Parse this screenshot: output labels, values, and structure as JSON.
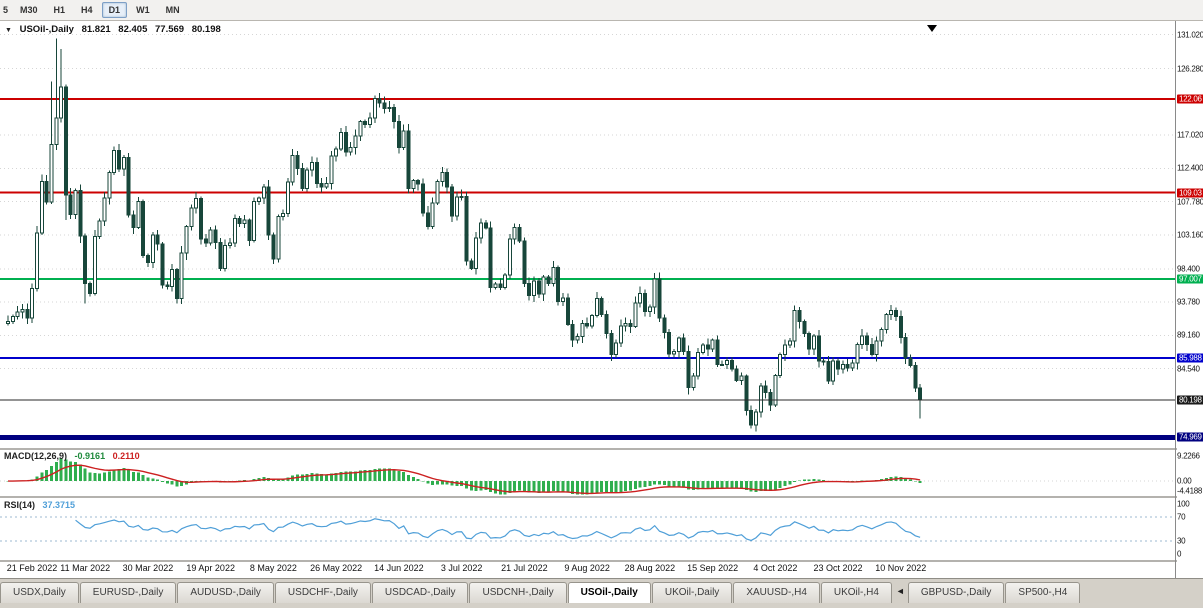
{
  "toolbar": {
    "partial_label": "5",
    "timeframes": [
      {
        "label": "M30",
        "active": false
      },
      {
        "label": "H1",
        "active": false
      },
      {
        "label": "H4",
        "active": false
      },
      {
        "label": "D1",
        "active": true
      },
      {
        "label": "W1",
        "active": false
      },
      {
        "label": "MN",
        "active": false
      }
    ]
  },
  "chart": {
    "symbol": "USOil-,Daily",
    "open": "81.821",
    "high": "82.405",
    "low": "77.569",
    "close": "80.198"
  },
  "chart_data": {
    "type": "candlestick",
    "title": "USOil-,Daily",
    "timeframe": "Daily",
    "price_axis": {
      "max": 132.9,
      "min": 73.5,
      "plain_labels": [
        {
          "v": 131.02,
          "t": "131.020"
        },
        {
          "v": 126.28,
          "t": "126.280"
        },
        {
          "v": 117.02,
          "t": "117.020"
        },
        {
          "v": 112.4,
          "t": "112.400"
        },
        {
          "v": 107.78,
          "t": "107.780"
        },
        {
          "v": 103.16,
          "t": "103.160"
        },
        {
          "v": 98.4,
          "t": "98.400"
        },
        {
          "v": 93.78,
          "t": "93.780"
        },
        {
          "v": 89.16,
          "t": "89.160"
        },
        {
          "v": 84.54,
          "t": "84.540"
        }
      ]
    },
    "h_lines": [
      {
        "price": 122.06,
        "label": "122.06",
        "color": "#cc0000",
        "width": 2
      },
      {
        "price": 109.03,
        "label": "109.03",
        "color": "#cc0000",
        "width": 2
      },
      {
        "price": 97.007,
        "label": "97.007",
        "color": "#00b050",
        "width": 2
      },
      {
        "price": 85.988,
        "label": "85.988",
        "color": "#0000cc",
        "width": 2
      },
      {
        "price": 74.969,
        "label": "74.969",
        "color": "#000080",
        "width": 5
      }
    ],
    "current_price": {
      "value": 80.198,
      "label": "80.198"
    },
    "first_open": 90.8,
    "closes": [
      91.1,
      91.8,
      92.4,
      92.8,
      91.6,
      95.7,
      103.4,
      110.6,
      107.7,
      115.7,
      119.4,
      123.7,
      108.7,
      106.0,
      109.3,
      103.0,
      96.4,
      95.0,
      102.9,
      105.1,
      108.3,
      111.8,
      114.9,
      112.3,
      113.9,
      105.9,
      104.2,
      107.8,
      100.3,
      99.3,
      103.1,
      101.9,
      96.2,
      96.0,
      98.3,
      94.3,
      100.6,
      104.3,
      106.9,
      108.2,
      102.6,
      102.0,
      103.8,
      102.1,
      98.5,
      101.7,
      102.0,
      105.4,
      104.7,
      105.2,
      102.4,
      107.8,
      108.3,
      109.8,
      103.1,
      99.8,
      105.7,
      106.1,
      110.5,
      114.2,
      112.4,
      109.6,
      112.2,
      113.2,
      110.3,
      109.8,
      110.3,
      114.1,
      115.1,
      117.4,
      114.7,
      115.3,
      116.9,
      118.9,
      118.5,
      119.4,
      122.1,
      121.5,
      120.7,
      120.9,
      118.9,
      115.3,
      117.6,
      109.6,
      110.7,
      110.2,
      106.2,
      104.3,
      107.6,
      110.6,
      111.8,
      109.8,
      105.8,
      108.4,
      108.5,
      99.5,
      98.5,
      102.7,
      104.8,
      104.1,
      95.8,
      96.3,
      95.8,
      97.6,
      102.6,
      104.2,
      102.3,
      96.4,
      94.7,
      96.7,
      94.9,
      97.3,
      96.4,
      98.6,
      93.9,
      94.4,
      90.7,
      88.5,
      89.0,
      90.8,
      90.5,
      91.9,
      94.3,
      92.1,
      89.4,
      86.5,
      88.1,
      90.5,
      90.8,
      90.4,
      93.7,
      95.0,
      92.5,
      93.1,
      97.0,
      91.6,
      89.6,
      86.6,
      86.9,
      88.8,
      86.9,
      81.9,
      83.5,
      86.8,
      87.8,
      87.3,
      88.5,
      85.1,
      85.1,
      85.7,
      84.5,
      82.9,
      83.5,
      78.7,
      76.7,
      78.5,
      82.1,
      81.2,
      79.5,
      83.6,
      86.5,
      87.8,
      88.4,
      92.6,
      91.1,
      89.4,
      87.3,
      89.1,
      85.6,
      85.5,
      82.8,
      85.6,
      84.5,
      85.1,
      84.6,
      85.3,
      87.9,
      89.1,
      87.9,
      86.5,
      88.4,
      90.0,
      92.1,
      92.6,
      91.8,
      88.9,
      86.0,
      85.0,
      81.82,
      80.198
    ],
    "wick_overrides": {
      "9": {
        "h": 124.5
      },
      "10": {
        "h": 130.5
      },
      "11": {
        "h": 129.0
      },
      "12": {
        "l": 105.2
      },
      "16": {
        "l": 93.6
      },
      "154": {
        "l": 76.2
      }
    },
    "last_ohlc": {
      "open": 81.821,
      "high": 82.405,
      "low": 77.569,
      "close": 80.198
    },
    "x_labels": [
      {
        "i": 3,
        "t": "21 Feb 2022"
      },
      {
        "i": 16,
        "t": "11 Mar 2022"
      },
      {
        "i": 29,
        "t": "30 Mar 2022"
      },
      {
        "i": 42,
        "t": "19 Apr 2022"
      },
      {
        "i": 55,
        "t": "8 May 2022"
      },
      {
        "i": 68,
        "t": "26 May 2022"
      },
      {
        "i": 81,
        "t": "14 Jun 2022"
      },
      {
        "i": 94,
        "t": "3 Jul 2022"
      },
      {
        "i": 107,
        "t": "21 Jul 2022"
      },
      {
        "i": 120,
        "t": "9 Aug 2022"
      },
      {
        "i": 133,
        "t": "28 Aug 2022"
      },
      {
        "i": 146,
        "t": "15 Sep 2022"
      },
      {
        "i": 159,
        "t": "4 Oct 2022"
      },
      {
        "i": 172,
        "t": "23 Oct 2022"
      },
      {
        "i": 185,
        "t": "10 Nov 2022"
      }
    ],
    "indicators": {
      "macd": {
        "header": "MACD(12,26,9)",
        "params": [
          12,
          26,
          9
        ],
        "main_value": "-0.9161",
        "signal_value": "0.2110",
        "axis": {
          "max": 9.2266,
          "max_label": "9.2266",
          "zero_label": "0.00",
          "min": -4.4188,
          "min_label": "-4.4188"
        }
      },
      "rsi": {
        "header": "RSI(14)",
        "period": 14,
        "value": "37.3715",
        "levels": [
          {
            "v": 100,
            "t": "100"
          },
          {
            "v": 70,
            "t": "70"
          },
          {
            "v": 30,
            "t": "30"
          },
          {
            "v": 0,
            "t": "0"
          }
        ],
        "dashed_levels": [
          70,
          30
        ]
      }
    }
  },
  "tabs": [
    {
      "label": "USDX,Daily",
      "active": false
    },
    {
      "label": "EURUSD-,Daily",
      "active": false
    },
    {
      "label": "AUDUSD-,Daily",
      "active": false
    },
    {
      "label": "USDCHF-,Daily",
      "active": false
    },
    {
      "label": "USDCAD-,Daily",
      "active": false
    },
    {
      "label": "USDCNH-,Daily",
      "active": false
    },
    {
      "label": "USOil-,Daily",
      "active": true
    },
    {
      "label": "UKOil-,Daily",
      "active": false
    },
    {
      "label": "XAUUSD-,H4",
      "active": false
    },
    {
      "label": "UKOil-,H4",
      "active": false
    },
    {
      "scroll_icon": true,
      "glyph": "◄"
    },
    {
      "label": "GBPUSD-,Daily",
      "active": false
    },
    {
      "label": "SP500-,H4",
      "active": false
    }
  ],
  "colors": {
    "candle": "#17463a",
    "candle_up_fill": "#ffffff",
    "macd_hist": "#2fae4e",
    "macd_signal": "#cc2020",
    "rsi_line": "#4f9fd8",
    "grid": "#d6d6d6",
    "price_line": "#2a2a2a",
    "price_badge": "#1a1a1a",
    "axis_text": "#111111"
  }
}
